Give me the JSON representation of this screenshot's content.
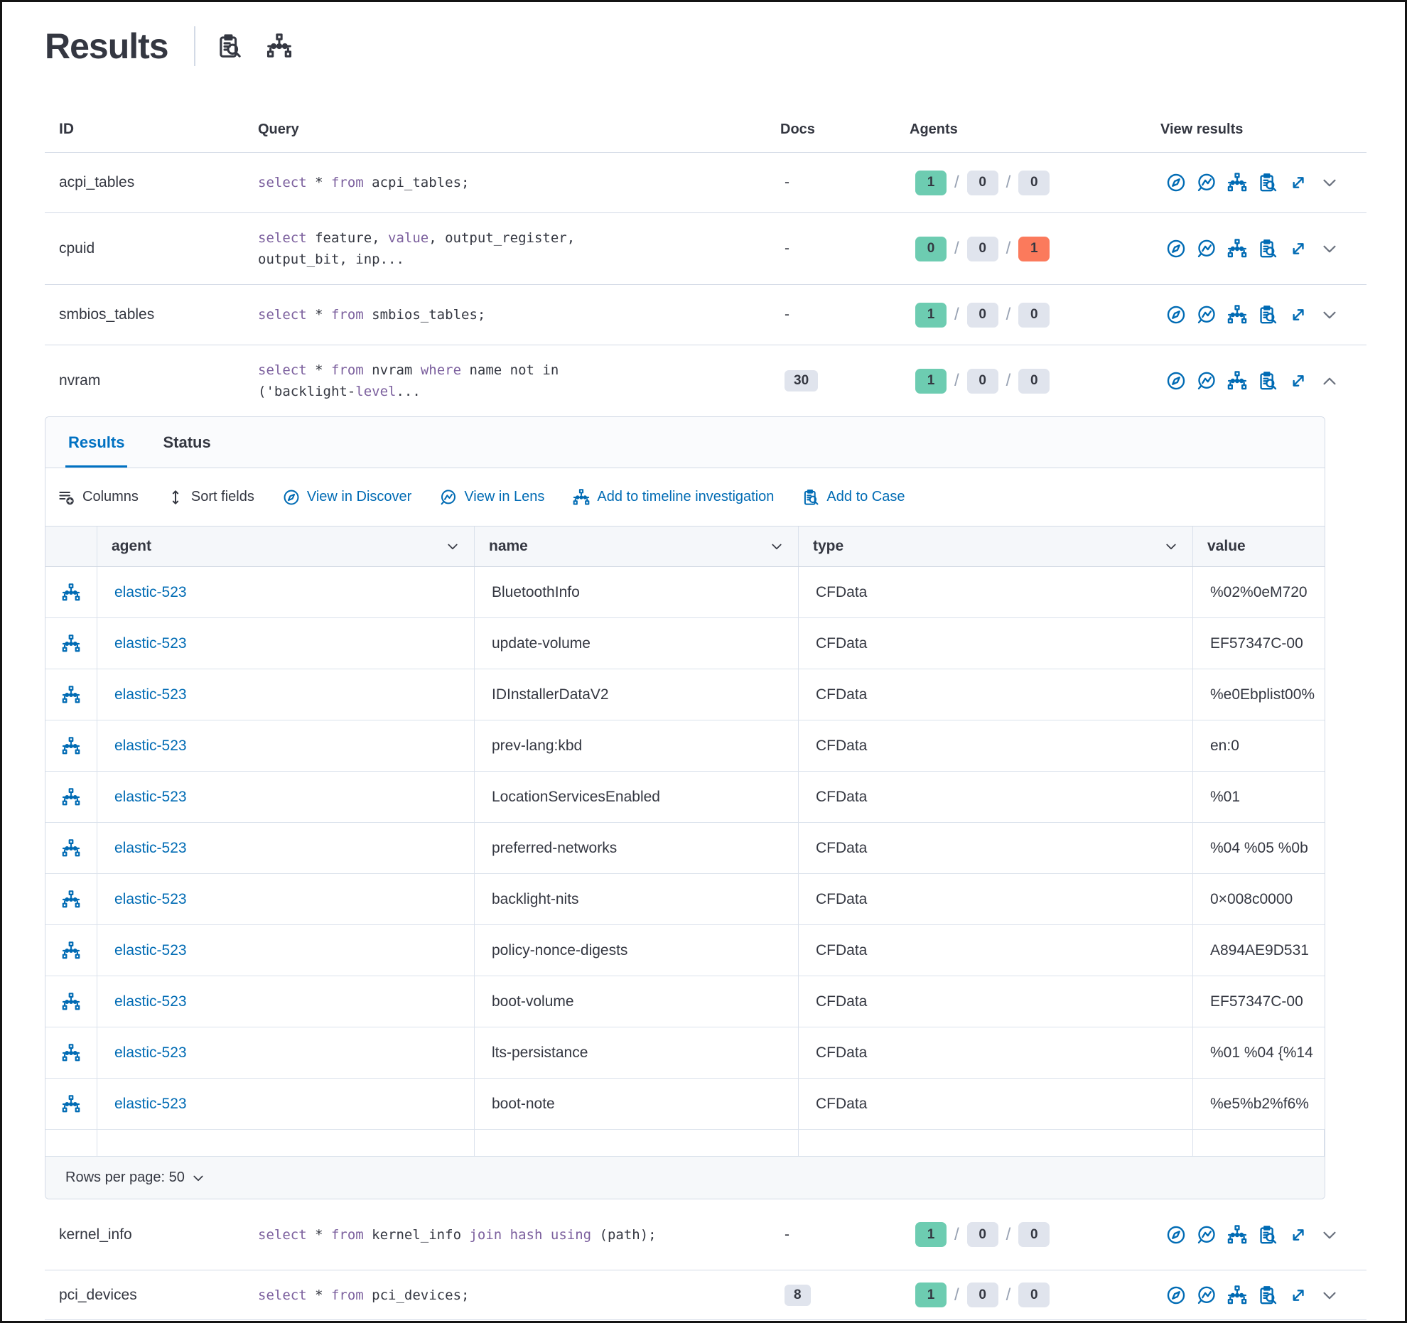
{
  "title": "Results",
  "title_icons": [
    {
      "icon": "inspect",
      "name": "inspect-icon"
    },
    {
      "icon": "timeline",
      "name": "timeline-icon"
    }
  ],
  "colors": {
    "success": "#6dccb1",
    "default": "#e0e4ed",
    "danger": "#fb7a5c",
    "primary": "#006bb4",
    "keyword": "#7c609e"
  },
  "queries_table": {
    "columns": [
      "ID",
      "Query",
      "Docs",
      "Agents",
      "View results"
    ],
    "view_actions": [
      "discover",
      "lens",
      "timeline",
      "case",
      "expand"
    ],
    "rows": [
      {
        "id": "acpi_tables",
        "docs": "-",
        "docs_badge": false,
        "expanded": false,
        "agents": [
          {
            "count": "1",
            "status": "success"
          },
          {
            "count": "0",
            "status": "default"
          },
          {
            "count": "0",
            "status": "default"
          }
        ],
        "query": [
          {
            "t": "select",
            "k": true
          },
          {
            "t": " * ",
            "k": false
          },
          {
            "t": "from",
            "k": true
          },
          {
            "t": " acpi_tables;",
            "k": false
          }
        ]
      },
      {
        "id": "cpuid",
        "docs": "-",
        "docs_badge": false,
        "expanded": false,
        "agents": [
          {
            "count": "0",
            "status": "success"
          },
          {
            "count": "0",
            "status": "default"
          },
          {
            "count": "1",
            "status": "danger"
          }
        ],
        "query": [
          {
            "t": "select",
            "k": true
          },
          {
            "t": " feature, ",
            "k": false
          },
          {
            "t": "value",
            "k": true
          },
          {
            "t": ", output_register,\noutput_bit, inp...",
            "k": false
          }
        ]
      },
      {
        "id": "smbios_tables",
        "docs": "-",
        "docs_badge": false,
        "expanded": false,
        "agents": [
          {
            "count": "1",
            "status": "success"
          },
          {
            "count": "0",
            "status": "default"
          },
          {
            "count": "0",
            "status": "default"
          }
        ],
        "query": [
          {
            "t": "select",
            "k": true
          },
          {
            "t": " * ",
            "k": false
          },
          {
            "t": "from",
            "k": true
          },
          {
            "t": " smbios_tables;",
            "k": false
          }
        ]
      },
      {
        "id": "nvram",
        "docs": "30",
        "docs_badge": true,
        "expanded": true,
        "agents": [
          {
            "count": "1",
            "status": "success"
          },
          {
            "count": "0",
            "status": "default"
          },
          {
            "count": "0",
            "status": "default"
          }
        ],
        "query": [
          {
            "t": "select",
            "k": true
          },
          {
            "t": " * ",
            "k": false
          },
          {
            "t": "from",
            "k": true
          },
          {
            "t": " nvram ",
            "k": false
          },
          {
            "t": "where",
            "k": true
          },
          {
            "t": " name not in\n('backlight-",
            "k": false
          },
          {
            "t": "level",
            "k": true
          },
          {
            "t": "...",
            "k": false
          }
        ]
      },
      {
        "id": "kernel_info",
        "docs": "-",
        "docs_badge": false,
        "expanded": false,
        "agents": [
          {
            "count": "1",
            "status": "success"
          },
          {
            "count": "0",
            "status": "default"
          },
          {
            "count": "0",
            "status": "default"
          }
        ],
        "query": [
          {
            "t": "select",
            "k": true
          },
          {
            "t": " * ",
            "k": false
          },
          {
            "t": "from",
            "k": true
          },
          {
            "t": " kernel_info ",
            "k": false
          },
          {
            "t": "join",
            "k": true
          },
          {
            "t": " ",
            "k": false
          },
          {
            "t": "hash",
            "k": true
          },
          {
            "t": " ",
            "k": false
          },
          {
            "t": "using",
            "k": true
          },
          {
            "t": " (path);",
            "k": false
          }
        ]
      },
      {
        "id": "pci_devices",
        "docs": "8",
        "docs_badge": true,
        "expanded": false,
        "agents": [
          {
            "count": "1",
            "status": "success"
          },
          {
            "count": "0",
            "status": "default"
          },
          {
            "count": "0",
            "status": "default"
          }
        ],
        "query": [
          {
            "t": "select",
            "k": true
          },
          {
            "t": " * ",
            "k": false
          },
          {
            "t": "from",
            "k": true
          },
          {
            "t": " pci_devices;",
            "k": false
          }
        ]
      }
    ]
  },
  "expanded_panel": {
    "tabs": [
      {
        "label": "Results",
        "active": true
      },
      {
        "label": "Status",
        "active": false
      }
    ],
    "toolbar": [
      {
        "label": "Columns",
        "icon": "columns",
        "link": false
      },
      {
        "label": "Sort fields",
        "icon": "sort",
        "link": false
      },
      {
        "label": "View in Discover",
        "icon": "discover",
        "link": true
      },
      {
        "label": "View in Lens",
        "icon": "lens",
        "link": true
      },
      {
        "label": "Add to timeline investigation",
        "icon": "timeline",
        "link": true
      },
      {
        "label": "Add to Case",
        "icon": "case",
        "link": true
      }
    ],
    "grid": {
      "columns": [
        {
          "label": "agent",
          "sortable": true
        },
        {
          "label": "name",
          "sortable": true
        },
        {
          "label": "type",
          "sortable": true
        },
        {
          "label": "value",
          "sortable": false
        }
      ],
      "rows": [
        {
          "agent": "elastic-523",
          "name": "BluetoothInfo",
          "type": "CFData",
          "value": "%02%0eM720"
        },
        {
          "agent": "elastic-523",
          "name": "update-volume",
          "type": "CFData",
          "value": "EF57347C-00"
        },
        {
          "agent": "elastic-523",
          "name": "IDInstallerDataV2",
          "type": "CFData",
          "value": "%e0Ebplist00%"
        },
        {
          "agent": "elastic-523",
          "name": "prev-lang:kbd",
          "type": "CFData",
          "value": "en:0"
        },
        {
          "agent": "elastic-523",
          "name": "LocationServicesEnabled",
          "type": "CFData",
          "value": "%01"
        },
        {
          "agent": "elastic-523",
          "name": "preferred-networks",
          "type": "CFData",
          "value": "%04 %05 %0b"
        },
        {
          "agent": "elastic-523",
          "name": "backlight-nits",
          "type": "CFData",
          "value": "0×008c0000"
        },
        {
          "agent": "elastic-523",
          "name": "policy-nonce-digests",
          "type": "CFData",
          "value": "A894AE9D531"
        },
        {
          "agent": "elastic-523",
          "name": "boot-volume",
          "type": "CFData",
          "value": "EF57347C-00"
        },
        {
          "agent": "elastic-523",
          "name": "lts-persistance",
          "type": "CFData",
          "value": "%01 %04 {%14"
        },
        {
          "agent": "elastic-523",
          "name": "boot-note",
          "type": "CFData",
          "value": "%e5%b2%f6%"
        }
      ]
    },
    "footer": {
      "rows_per_page_label": "Rows per page: 50"
    }
  }
}
